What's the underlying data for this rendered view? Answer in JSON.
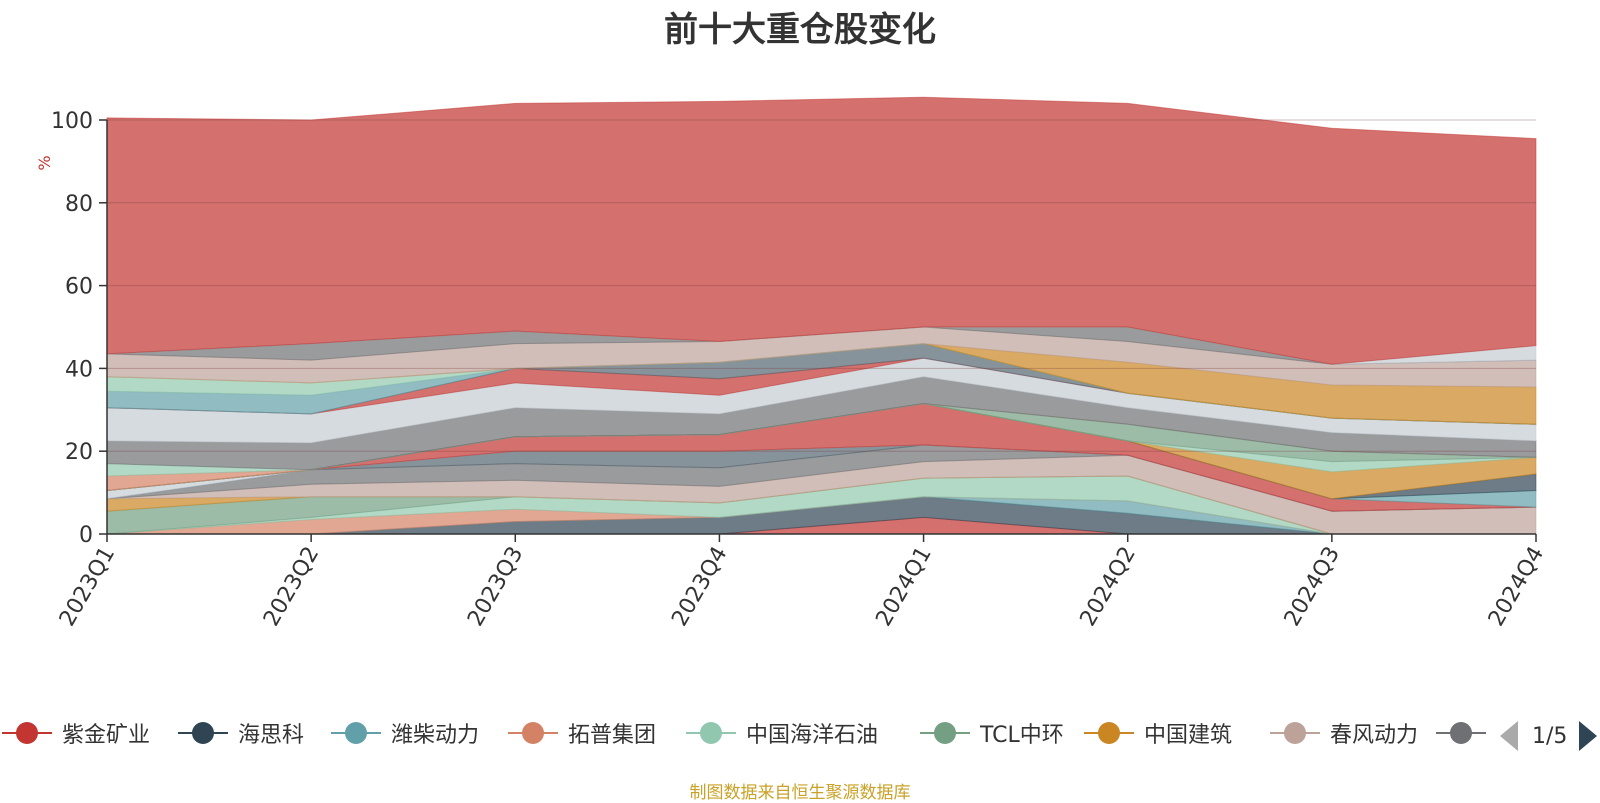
{
  "chart_data": {
    "type": "area",
    "title": "前十大重仓股变化",
    "ylabel": "%",
    "ylim": [
      0,
      100
    ],
    "y_ticks": [
      0,
      20,
      40,
      60,
      80,
      100
    ],
    "grid": true,
    "categories": [
      "2023Q1",
      "2023Q2",
      "2023Q3",
      "2023Q4",
      "2024Q1",
      "2024Q2",
      "2024Q3",
      "2024Q4"
    ],
    "series": [
      {
        "name": "紫金矿业",
        "color": "#c23531",
        "values": [
          0,
          0,
          0,
          0,
          4,
          0,
          0,
          0
        ]
      },
      {
        "name": "海思科",
        "color": "#2f4554",
        "values": [
          0,
          0,
          3,
          4,
          5,
          5,
          0,
          0
        ]
      },
      {
        "name": "潍柴动力",
        "color": "#61a0a8",
        "values": [
          0,
          0,
          0,
          0,
          0,
          3,
          0,
          0
        ]
      },
      {
        "name": "拓普集团",
        "color": "#d48265",
        "values": [
          0,
          3.5,
          3,
          0,
          0,
          0,
          0,
          0
        ]
      },
      {
        "name": "中国海洋石油",
        "color": "#91c7ae",
        "values": [
          0,
          0.5,
          3,
          3.5,
          4.5,
          6,
          0,
          0
        ]
      },
      {
        "name": "TCL中环",
        "color": "#749f83",
        "values": [
          5.5,
          5,
          0,
          0,
          0,
          0,
          0,
          0
        ]
      },
      {
        "name": "中国建筑",
        "color": "#ca8622",
        "values": [
          3,
          0,
          0,
          0,
          0,
          0,
          0,
          0
        ]
      },
      {
        "name": "春风动力",
        "color": "#bda29a",
        "values": [
          0,
          3,
          4,
          4,
          4,
          5,
          5.5,
          6.5
        ]
      },
      {
        "name": "",
        "color": "#6e7074",
        "values": [
          0,
          3.5,
          4,
          4.5,
          4,
          0,
          0,
          0
        ]
      },
      {
        "name": "",
        "color": "#546570",
        "values": [
          0,
          0,
          3,
          4,
          0,
          0,
          0,
          0
        ]
      },
      {
        "name": "",
        "color": "#c4ccd3",
        "values": [
          2,
          0,
          0,
          0,
          0,
          0,
          0,
          0
        ]
      },
      {
        "name": "",
        "color": "#c23531",
        "values": [
          0,
          0,
          3.5,
          4,
          10,
          3.5,
          3,
          0
        ]
      },
      {
        "name": "",
        "color": "#61a0a8",
        "values": [
          0,
          0,
          0,
          0,
          0,
          0,
          0,
          4
        ]
      },
      {
        "name": "",
        "color": "#2f4554",
        "values": [
          0,
          0,
          0,
          0,
          0,
          0,
          0,
          4
        ]
      },
      {
        "name": "",
        "color": "#ca8622",
        "values": [
          0,
          0,
          0,
          0,
          0,
          0,
          6.5,
          4
        ]
      },
      {
        "name": "",
        "color": "#91c7ae",
        "values": [
          0,
          0,
          0,
          0,
          0,
          0,
          2.5,
          0
        ]
      },
      {
        "name": "",
        "color": "#749f83",
        "values": [
          0,
          0,
          0,
          0,
          0,
          4,
          2.5,
          0
        ]
      },
      {
        "name": "",
        "color": "#d48265",
        "values": [
          3.5,
          0,
          0,
          0,
          0,
          0,
          0,
          0
        ]
      },
      {
        "name": "",
        "color": "#91c7ae",
        "values": [
          3,
          0,
          0,
          0,
          0,
          0,
          0,
          0
        ]
      },
      {
        "name": "",
        "color": "#6e7074",
        "values": [
          5.5,
          6.5,
          7,
          5,
          6.5,
          4,
          4.5,
          4
        ]
      },
      {
        "name": "",
        "color": "#c4ccd3",
        "values": [
          8,
          7,
          6,
          4.5,
          4.5,
          3.5,
          3.5,
          4
        ]
      },
      {
        "name": "",
        "color": "#c23531",
        "values": [
          0,
          0,
          3.5,
          4,
          0,
          0,
          0,
          0
        ]
      },
      {
        "name": "",
        "color": "#546570",
        "values": [
          0,
          0,
          0,
          4,
          3.5,
          0,
          0,
          0
        ]
      },
      {
        "name": "",
        "color": "#61a0a8",
        "values": [
          4,
          4.5,
          0,
          0,
          0,
          0,
          0,
          0
        ]
      },
      {
        "name": "",
        "color": "#91c7ae",
        "values": [
          3.5,
          3,
          0,
          0,
          0,
          0,
          0,
          0
        ]
      },
      {
        "name": "",
        "color": "#ca8622",
        "values": [
          0,
          0,
          0,
          0,
          0,
          7.5,
          8,
          9
        ]
      },
      {
        "name": "",
        "color": "#bda29a",
        "values": [
          5.5,
          5.5,
          6,
          5,
          4,
          5,
          5,
          6.5
        ]
      },
      {
        "name": "",
        "color": "#6e7074",
        "values": [
          0,
          4,
          3,
          0,
          0,
          3.5,
          0,
          0
        ]
      },
      {
        "name": "",
        "color": "#c4ccd3",
        "values": [
          0,
          0,
          0,
          0,
          0,
          0,
          0,
          3.5
        ]
      },
      {
        "name": "",
        "color": "#c23531",
        "values": [
          57,
          54,
          55,
          58,
          55.5,
          54,
          57,
          50
        ]
      }
    ]
  },
  "legend": {
    "items": [
      {
        "label": "紫金矿业",
        "color": "#c23531"
      },
      {
        "label": "海思科",
        "color": "#2f4554"
      },
      {
        "label": "潍柴动力",
        "color": "#61a0a8"
      },
      {
        "label": "拓普集团",
        "color": "#d48265"
      },
      {
        "label": "中国海洋石油",
        "color": "#91c7ae"
      },
      {
        "label": "TCL中环",
        "color": "#749f83"
      },
      {
        "label": "中国建筑",
        "color": "#ca8622"
      },
      {
        "label": "春风动力",
        "color": "#bda29a"
      },
      {
        "label": "",
        "color": "#6e7074"
      }
    ],
    "page": "1/5"
  },
  "source_note": "制图数据来自恒生聚源数据库"
}
